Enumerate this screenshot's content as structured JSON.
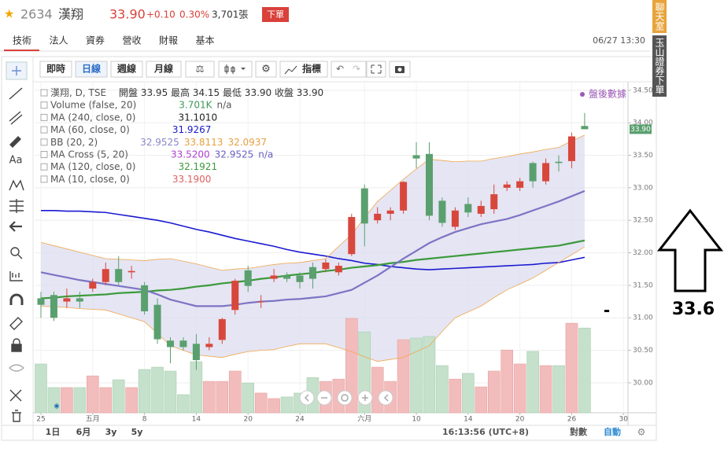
{
  "header": {
    "code": "2634",
    "name": "漢翔",
    "price": "33.90",
    "change": "+0.10",
    "change_pct": "0.30%",
    "volume": "3,701張",
    "order_button": "下單"
  },
  "tabs": [
    "技術",
    "法人",
    "資券",
    "營收",
    "財報",
    "基本"
  ],
  "timestamp": "06/27 13:30",
  "side_buttons": [
    "聊天室",
    "玉山證券下單"
  ],
  "toolbar": {
    "periods": [
      "即時",
      "日線",
      "週線",
      "月線"
    ],
    "active_period": 1,
    "indicator": "指標"
  },
  "tool_text": "Aa",
  "after_hours": "盤後數據",
  "legend": [
    {
      "label": "漢翔, D, TSE",
      "values": [
        "開盤 33.95 最高 34.15 最低 33.90 收盤 33.90"
      ],
      "colors": [
        "#333333"
      ]
    },
    {
      "label": "Volume (false, 20)",
      "values": [
        "3.701K",
        "n/a"
      ],
      "colors": [
        "#3d9a5a",
        "#555555"
      ]
    },
    {
      "label": "MA (240, close, 0)",
      "values": [
        "31.1010"
      ],
      "colors": [
        "#222222"
      ]
    },
    {
      "label": "MA (60, close, 0)",
      "values": [
        "31.9267"
      ],
      "colors": [
        "#1a1ad0"
      ]
    },
    {
      "label": "BB (20, 2)",
      "values": [
        "32.9525",
        "33.8113",
        "32.0937"
      ],
      "colors": [
        "#8c86c8",
        "#e8a040",
        "#e8a040"
      ]
    },
    {
      "label": "MA Cross (5, 20)",
      "values": [
        "33.5200",
        "32.9525",
        "n/a"
      ],
      "colors": [
        "#b040d0",
        "#6a60c0",
        "#6a60c0"
      ]
    },
    {
      "label": "MA (120, close, 0)",
      "values": [
        "32.1921"
      ],
      "colors": [
        "#3a9a3a"
      ]
    },
    {
      "label": "MA (10, close, 0)",
      "values": [
        "33.1900"
      ],
      "colors": [
        "#e06060"
      ]
    }
  ],
  "chart_data": {
    "type": "candlestick",
    "categories": [
      "25",
      null,
      null,
      null,
      "五月",
      null,
      null,
      null,
      "8",
      null,
      null,
      null,
      "14",
      null,
      null,
      null,
      "20",
      null,
      null,
      null,
      "24",
      null,
      null,
      null,
      null,
      "六月",
      null,
      null,
      null,
      "10",
      null,
      null,
      null,
      "14",
      null,
      null,
      null,
      "20",
      null,
      null,
      null,
      "26",
      null,
      null,
      null,
      "30"
    ],
    "open": [
      31.3,
      31.35,
      31.25,
      31.3,
      31.45,
      31.55,
      31.75,
      31.7,
      31.5,
      31.2,
      30.65,
      30.65,
      30.6,
      30.55,
      30.66,
      31.12,
      31.73,
      31.25,
      31.6,
      31.65,
      31.65,
      31.78,
      31.75,
      31.7,
      31.98,
      32.99,
      32.5,
      32.6,
      32.65,
      33.5,
      33.52,
      32.8,
      32.4,
      32.75,
      32.6,
      32.67,
      33.0,
      33.0,
      33.38,
      33.1,
      33.4,
      33.41,
      33.95,
      null,
      null,
      null
    ],
    "high": [
      31.4,
      31.4,
      31.45,
      31.4,
      31.6,
      31.85,
      31.95,
      31.8,
      31.55,
      31.3,
      30.7,
      30.7,
      30.75,
      30.7,
      31.0,
      31.6,
      31.8,
      31.35,
      31.75,
      31.7,
      31.7,
      31.85,
      31.9,
      31.85,
      32.6,
      33.05,
      32.7,
      32.7,
      33.1,
      33.7,
      33.7,
      32.85,
      32.7,
      32.85,
      32.8,
      33.05,
      33.1,
      33.15,
      33.4,
      33.45,
      33.5,
      33.85,
      34.15,
      null,
      null,
      null
    ],
    "low": [
      31.0,
      30.95,
      31.15,
      31.15,
      31.4,
      31.5,
      31.5,
      31.6,
      31.05,
      30.6,
      30.3,
      30.5,
      30.2,
      30.5,
      30.6,
      31.05,
      31.4,
      31.15,
      31.55,
      31.55,
      31.45,
      31.45,
      31.7,
      31.65,
      31.95,
      32.1,
      32.45,
      32.5,
      32.6,
      33.3,
      32.5,
      32.4,
      32.35,
      32.55,
      32.55,
      32.6,
      32.95,
      32.95,
      33.0,
      33.05,
      33.25,
      33.3,
      33.9,
      null,
      null,
      null
    ],
    "close": [
      31.2,
      31.0,
      31.3,
      31.25,
      31.55,
      31.75,
      31.55,
      31.72,
      31.1,
      30.67,
      30.55,
      30.55,
      30.35,
      30.6,
      30.98,
      31.57,
      31.49,
      31.25,
      31.65,
      31.6,
      31.55,
      31.6,
      31.85,
      31.8,
      32.55,
      32.45,
      32.6,
      32.65,
      33.09,
      33.45,
      32.57,
      32.46,
      32.65,
      32.62,
      32.72,
      32.9,
      33.05,
      33.1,
      33.1,
      33.38,
      33.38,
      33.79,
      33.9,
      null,
      null,
      null
    ],
    "volume": [
      2130,
      1100,
      1100,
      1100,
      1610,
      1100,
      1440,
      1100,
      1890,
      1990,
      1820,
      790,
      2230,
      1370,
      1370,
      1820,
      1300,
      860,
      620,
      690,
      860,
      1540,
      1370,
      1470,
      4120,
      3530,
      1990,
      1370,
      3190,
      3260,
      3330,
      2060,
      1470,
      1720,
      1130,
      1820,
      2740,
      2130,
      2680,
      2060,
      2060,
      3910,
      3701,
      null,
      null,
      null
    ],
    "lines": [
      {
        "color": "#1a1ad0",
        "width": 1.6,
        "values": [
          32.65,
          32.65,
          32.64,
          32.64,
          32.63,
          32.62,
          32.59,
          32.56,
          32.53,
          32.5,
          32.46,
          32.41,
          32.36,
          32.32,
          32.27,
          32.22,
          32.18,
          32.14,
          32.1,
          32.05,
          32.01,
          31.98,
          31.95,
          31.91,
          31.88,
          31.84,
          31.82,
          31.79,
          31.77,
          31.75,
          31.74,
          31.75,
          31.76,
          31.77,
          31.78,
          31.79,
          31.8,
          31.81,
          31.82,
          31.84,
          31.85,
          31.89,
          31.93,
          null,
          null,
          null
        ]
      },
      {
        "color": "#3a9a3a",
        "width": 2.2,
        "values": [
          31.3,
          31.31,
          31.33,
          31.34,
          31.35,
          31.36,
          31.38,
          31.39,
          31.4,
          31.42,
          31.43,
          31.45,
          31.48,
          31.5,
          31.53,
          31.55,
          31.57,
          31.6,
          31.62,
          31.65,
          31.67,
          31.69,
          31.72,
          31.74,
          31.77,
          31.79,
          31.81,
          31.84,
          31.86,
          31.89,
          31.91,
          31.93,
          31.95,
          31.97,
          31.99,
          32.01,
          32.03,
          32.05,
          32.07,
          32.09,
          32.11,
          32.15,
          32.19,
          null,
          null,
          null
        ]
      },
      {
        "color": "#7c74c4",
        "width": 2.2,
        "values": [
          31.7,
          31.66,
          31.62,
          31.58,
          31.55,
          31.52,
          31.49,
          31.46,
          31.43,
          31.36,
          31.28,
          31.23,
          31.18,
          31.18,
          31.18,
          31.2,
          31.23,
          31.25,
          31.26,
          31.28,
          31.29,
          31.31,
          31.33,
          31.38,
          31.43,
          31.54,
          31.65,
          31.78,
          31.91,
          32.03,
          32.15,
          32.24,
          32.32,
          32.38,
          32.44,
          32.48,
          32.52,
          32.58,
          32.65,
          32.72,
          32.79,
          32.87,
          32.95,
          null,
          null,
          null
        ]
      },
      {
        "color": "#f0a850",
        "width": 0.8,
        "values": [
          32.16,
          32.11,
          32.06,
          32.01,
          31.96,
          31.91,
          31.9,
          31.89,
          31.88,
          31.9,
          31.91,
          31.87,
          31.83,
          31.78,
          31.73,
          31.75,
          31.76,
          31.79,
          31.82,
          31.84,
          31.85,
          31.88,
          31.91,
          32.1,
          32.28,
          32.54,
          32.79,
          32.96,
          33.13,
          33.29,
          33.44,
          33.42,
          33.4,
          33.41,
          33.41,
          33.45,
          33.48,
          33.52,
          33.55,
          33.59,
          33.62,
          33.72,
          33.81,
          null,
          null,
          null
        ]
      },
      {
        "color": "#f0a850",
        "width": 0.8,
        "values": [
          31.18,
          31.17,
          31.16,
          31.14,
          31.13,
          31.12,
          31.06,
          31.0,
          30.94,
          30.76,
          30.57,
          30.5,
          30.43,
          30.41,
          30.39,
          30.44,
          30.48,
          30.5,
          30.51,
          30.56,
          30.6,
          30.6,
          30.6,
          30.54,
          30.48,
          30.4,
          30.33,
          30.36,
          30.39,
          30.48,
          30.57,
          30.79,
          31.0,
          31.09,
          31.18,
          31.31,
          31.43,
          31.52,
          31.61,
          31.73,
          31.85,
          31.97,
          32.09,
          null,
          null,
          null
        ]
      }
    ],
    "band_fill": "#dcdcef",
    "up_color": "#d8473c",
    "down_color": "#5aa06f",
    "volume_up_color": "#f2bcbc",
    "volume_down_color": "#c5e0cb",
    "ylim": [
      29.54,
      34.63
    ],
    "yticks": [
      {
        "value": 30,
        "label": "30.00"
      },
      {
        "value": 30.5,
        "label": "30.50"
      },
      {
        "value": 31,
        "label": "31.00"
      },
      {
        "value": 31.5,
        "label": "31.50"
      },
      {
        "value": 32,
        "label": "32.00"
      },
      {
        "value": 32.5,
        "label": "32.50"
      },
      {
        "value": 33,
        "label": "33.00"
      },
      {
        "value": 33.5,
        "label": "33.50"
      },
      {
        "value": 34,
        "label": "34.00"
      },
      {
        "value": 34.5,
        "label": "34.50"
      }
    ],
    "grid": true
  },
  "range_buttons": [
    "1日",
    "6月",
    "3y",
    "5y"
  ],
  "clock": "16:13:56 (UTC+8)",
  "scale_buttons": [
    "對數",
    "自動"
  ],
  "annotation": {
    "mark": "-",
    "value": 33.6
  }
}
